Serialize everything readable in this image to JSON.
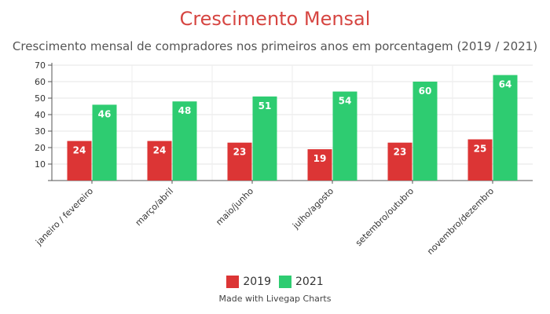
{
  "chart_data": {
    "type": "bar",
    "title": "Crescimento Mensal",
    "subtitle": "Crescimento mensal de compradores nos primeiros anos em porcentagem (2019 / 2021)",
    "categories": [
      "janeiro / fevereiro",
      "março/abril",
      "maio/junho",
      "julho/agosto",
      "setembro/outubro",
      "novembro/dezembro"
    ],
    "series": [
      {
        "name": "2019",
        "values": [
          24,
          24,
          23,
          19,
          23,
          25
        ],
        "color": "#dc3535"
      },
      {
        "name": "2021",
        "values": [
          46,
          48,
          51,
          54,
          60,
          64
        ],
        "color": "#2ecc71"
      }
    ],
    "ylim": [
      0,
      70
    ],
    "yticks": [
      10,
      20,
      30,
      40,
      50,
      60,
      70
    ],
    "grid": true,
    "legend": "bottom-center"
  },
  "credit": "Made with Livegap Charts"
}
